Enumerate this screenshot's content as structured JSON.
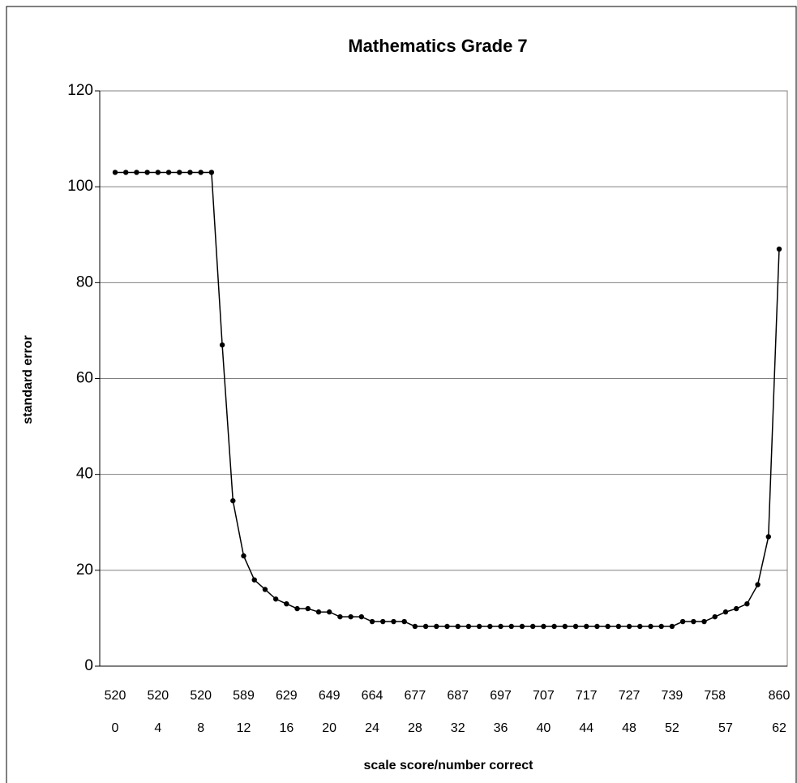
{
  "chart_data": {
    "type": "line",
    "title": "Mathematics Grade 7",
    "x_label": "scale score/number correct",
    "y_label": "standard error",
    "scale_scores": [
      "520",
      null,
      null,
      null,
      "520",
      null,
      null,
      null,
      "520",
      null,
      null,
      null,
      "589",
      null,
      null,
      null,
      "629",
      null,
      null,
      null,
      "649",
      null,
      null,
      null,
      "664",
      null,
      null,
      null,
      "677",
      null,
      null,
      null,
      "687",
      null,
      null,
      null,
      "697",
      null,
      null,
      null,
      "707",
      null,
      null,
      null,
      "717",
      null,
      null,
      null,
      "727",
      null,
      null,
      null,
      "739",
      null,
      null,
      null,
      "758",
      null,
      null,
      null,
      null,
      null,
      "860"
    ],
    "categories": [
      "0",
      null,
      null,
      null,
      "4",
      null,
      null,
      null,
      "8",
      null,
      null,
      null,
      "12",
      null,
      null,
      null,
      "16",
      null,
      null,
      null,
      "20",
      null,
      null,
      null,
      "24",
      null,
      null,
      null,
      "28",
      null,
      null,
      null,
      "32",
      null,
      null,
      null,
      "36",
      null,
      null,
      null,
      "40",
      null,
      null,
      null,
      "44",
      null,
      null,
      null,
      "48",
      null,
      null,
      null,
      "52",
      null,
      null,
      null,
      null,
      "57",
      null,
      null,
      null,
      null,
      "62"
    ],
    "series": [
      {
        "name": "standard error",
        "color": "#000000",
        "values": [
          103,
          103,
          103,
          103,
          103,
          103,
          103,
          103,
          103,
          103,
          67,
          34.5,
          23,
          18,
          16,
          14,
          13,
          12,
          12,
          11.3,
          11.3,
          10.3,
          10.3,
          10.3,
          9.3,
          9.3,
          9.3,
          9.3,
          8.3,
          8.3,
          8.3,
          8.3,
          8.3,
          8.3,
          8.3,
          8.3,
          8.3,
          8.3,
          8.3,
          8.3,
          8.3,
          8.3,
          8.3,
          8.3,
          8.3,
          8.3,
          8.3,
          8.3,
          8.3,
          8.3,
          8.3,
          8.3,
          8.3,
          9.3,
          9.3,
          9.3,
          10.3,
          11.3,
          12,
          13,
          17,
          27,
          87
        ]
      }
    ],
    "ylim": [
      0,
      120
    ],
    "yticks": [
      0,
      20,
      40,
      60,
      80,
      100,
      120
    ],
    "grid": true
  }
}
